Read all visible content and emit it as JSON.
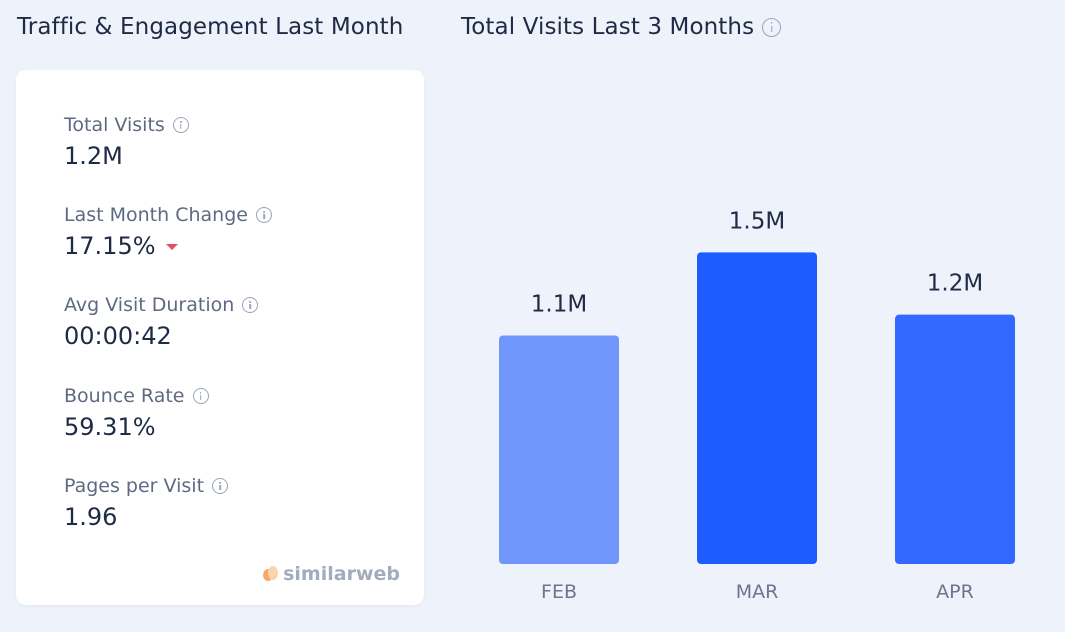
{
  "left_panel": {
    "title": "Traffic & Engagement Last Month",
    "metrics": [
      {
        "label": "Total Visits",
        "value": "1.2M"
      },
      {
        "label": "Last Month Change",
        "value": "17.15%",
        "trend": "down"
      },
      {
        "label": "Avg Visit Duration",
        "value": "00:00:42"
      },
      {
        "label": "Bounce Rate",
        "value": "59.31%"
      },
      {
        "label": "Pages per Visit",
        "value": "1.96"
      }
    ],
    "brand": "similarweb"
  },
  "right_panel": {
    "title": "Total Visits Last 3 Months"
  },
  "colors": {
    "bar_light": "#7096fb",
    "bar_dark": "#1d5cff",
    "bar_mid": "#3268ff",
    "trend_down": "#e5505e"
  },
  "chart_data": {
    "type": "bar",
    "title": "Total Visits Last 3 Months",
    "categories": [
      "FEB",
      "MAR",
      "APR"
    ],
    "values": [
      1.1,
      1.5,
      1.2
    ],
    "value_labels": [
      "1.1M",
      "1.5M",
      "1.2M"
    ],
    "unit": "M",
    "ylim": [
      0,
      1.8
    ],
    "grid": false,
    "legend": "none"
  }
}
